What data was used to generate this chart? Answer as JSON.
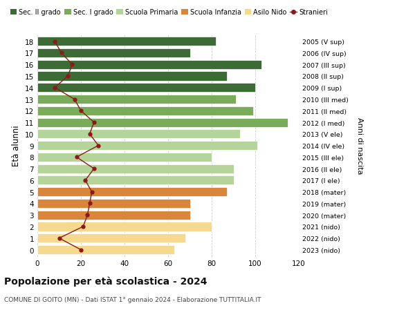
{
  "ages": [
    18,
    17,
    16,
    15,
    14,
    13,
    12,
    11,
    10,
    9,
    8,
    7,
    6,
    5,
    4,
    3,
    2,
    1,
    0
  ],
  "right_labels": [
    "2005 (V sup)",
    "2006 (IV sup)",
    "2007 (III sup)",
    "2008 (II sup)",
    "2009 (I sup)",
    "2010 (III med)",
    "2011 (II med)",
    "2012 (I med)",
    "2013 (V ele)",
    "2014 (IV ele)",
    "2015 (III ele)",
    "2016 (II ele)",
    "2017 (I ele)",
    "2018 (mater)",
    "2019 (mater)",
    "2020 (mater)",
    "2021 (nido)",
    "2022 (nido)",
    "2023 (nido)"
  ],
  "bar_values": [
    82,
    70,
    103,
    87,
    100,
    91,
    99,
    115,
    93,
    101,
    80,
    90,
    90,
    87,
    70,
    70,
    80,
    68,
    63
  ],
  "bar_colors": [
    "#3d6b35",
    "#3d6b35",
    "#3d6b35",
    "#3d6b35",
    "#3d6b35",
    "#7aab5a",
    "#7aab5a",
    "#7aab5a",
    "#b5d49a",
    "#b5d49a",
    "#b5d49a",
    "#b5d49a",
    "#b5d49a",
    "#d9863a",
    "#d9863a",
    "#d9863a",
    "#f5d98e",
    "#f5d98e",
    "#f5d98e"
  ],
  "stranieri_values": [
    8,
    11,
    16,
    14,
    8,
    17,
    20,
    26,
    24,
    28,
    18,
    26,
    22,
    25,
    24,
    23,
    21,
    10,
    20
  ],
  "legend_labels": [
    "Sec. II grado",
    "Sec. I grado",
    "Scuola Primaria",
    "Scuola Infanzia",
    "Asilo Nido",
    "Stranieri"
  ],
  "legend_colors": [
    "#3d6b35",
    "#7aab5a",
    "#b5d49a",
    "#d9863a",
    "#f5d98e",
    "#8b1a1a"
  ],
  "title": "Popolazione per età scolastica - 2024",
  "subtitle": "COMUNE DI GOITO (MN) - Dati ISTAT 1° gennaio 2024 - Elaborazione TUTTITALIA.IT",
  "xlabel_right": "Anni di nascita",
  "ylabel": "Età alunni",
  "xlim": [
    0,
    120
  ],
  "xticks": [
    0,
    20,
    40,
    60,
    80,
    100,
    120
  ],
  "bar_height": 0.78,
  "bg_color": "#ffffff",
  "grid_color": "#cccccc",
  "stranieri_color": "#8b1a1a"
}
